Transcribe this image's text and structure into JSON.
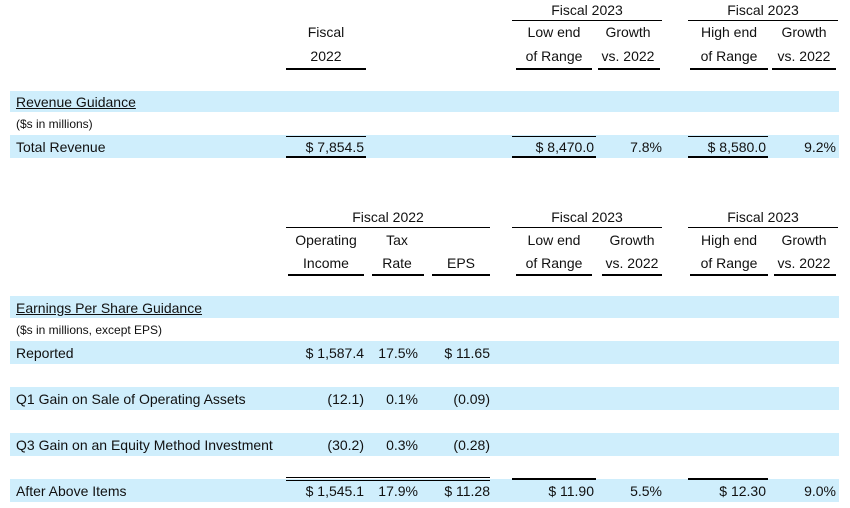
{
  "revenue": {
    "headers": {
      "fy2022_l1": "Fiscal",
      "fy2022_l2": "2022",
      "fy2023_low_group": "Fiscal 2023",
      "fy2023_high_group": "Fiscal 2023",
      "low_l1": "Low end",
      "low_l2": "of Range",
      "growth_l1": "Growth",
      "growth_l2": "vs. 2022",
      "high_l1": "High end",
      "high_l2": "of Range"
    },
    "section_title": "Revenue Guidance",
    "units": "($s in millions)",
    "total": {
      "label": "Total Revenue",
      "fy2022": "$ 7,854.5",
      "low": "$ 8,470.0",
      "low_growth": "7.8%",
      "high": "$ 8,580.0",
      "high_growth": "9.2%"
    }
  },
  "eps": {
    "headers": {
      "fy2022_group": "Fiscal 2022",
      "fy2023_low_group": "Fiscal 2023",
      "fy2023_high_group": "Fiscal 2023",
      "opinc_l1": "Operating",
      "opinc_l2": "Income",
      "tax_l1": "Tax",
      "tax_l2": "Rate",
      "eps": "EPS",
      "low_l1": "Low end",
      "low_l2": "of Range",
      "growth_l1": "Growth",
      "growth_l2": "vs. 2022",
      "high_l1": "High end",
      "high_l2": "of Range"
    },
    "section_title": "Earnings Per Share Guidance",
    "units": "($s in millions, except EPS)",
    "rows": [
      {
        "label": "Reported",
        "opinc": "$ 1,587.4",
        "tax": "17.5%",
        "eps": "$ 11.65"
      },
      {
        "label": "Q1 Gain on Sale of Operating Assets",
        "opinc": "(12.1)",
        "tax": "0.1%",
        "eps": "(0.09)"
      },
      {
        "label": "Q3 Gain on an Equity Method Investment",
        "opinc": "(30.2)",
        "tax": "0.3%",
        "eps": "(0.28)"
      }
    ],
    "after": {
      "label": "After Above Items",
      "opinc": "$ 1,545.1",
      "tax": "17.9%",
      "eps": "$ 11.28",
      "low": "$ 11.90",
      "low_growth": "5.5%",
      "high": "$ 12.30",
      "high_growth": "9.0%"
    }
  }
}
